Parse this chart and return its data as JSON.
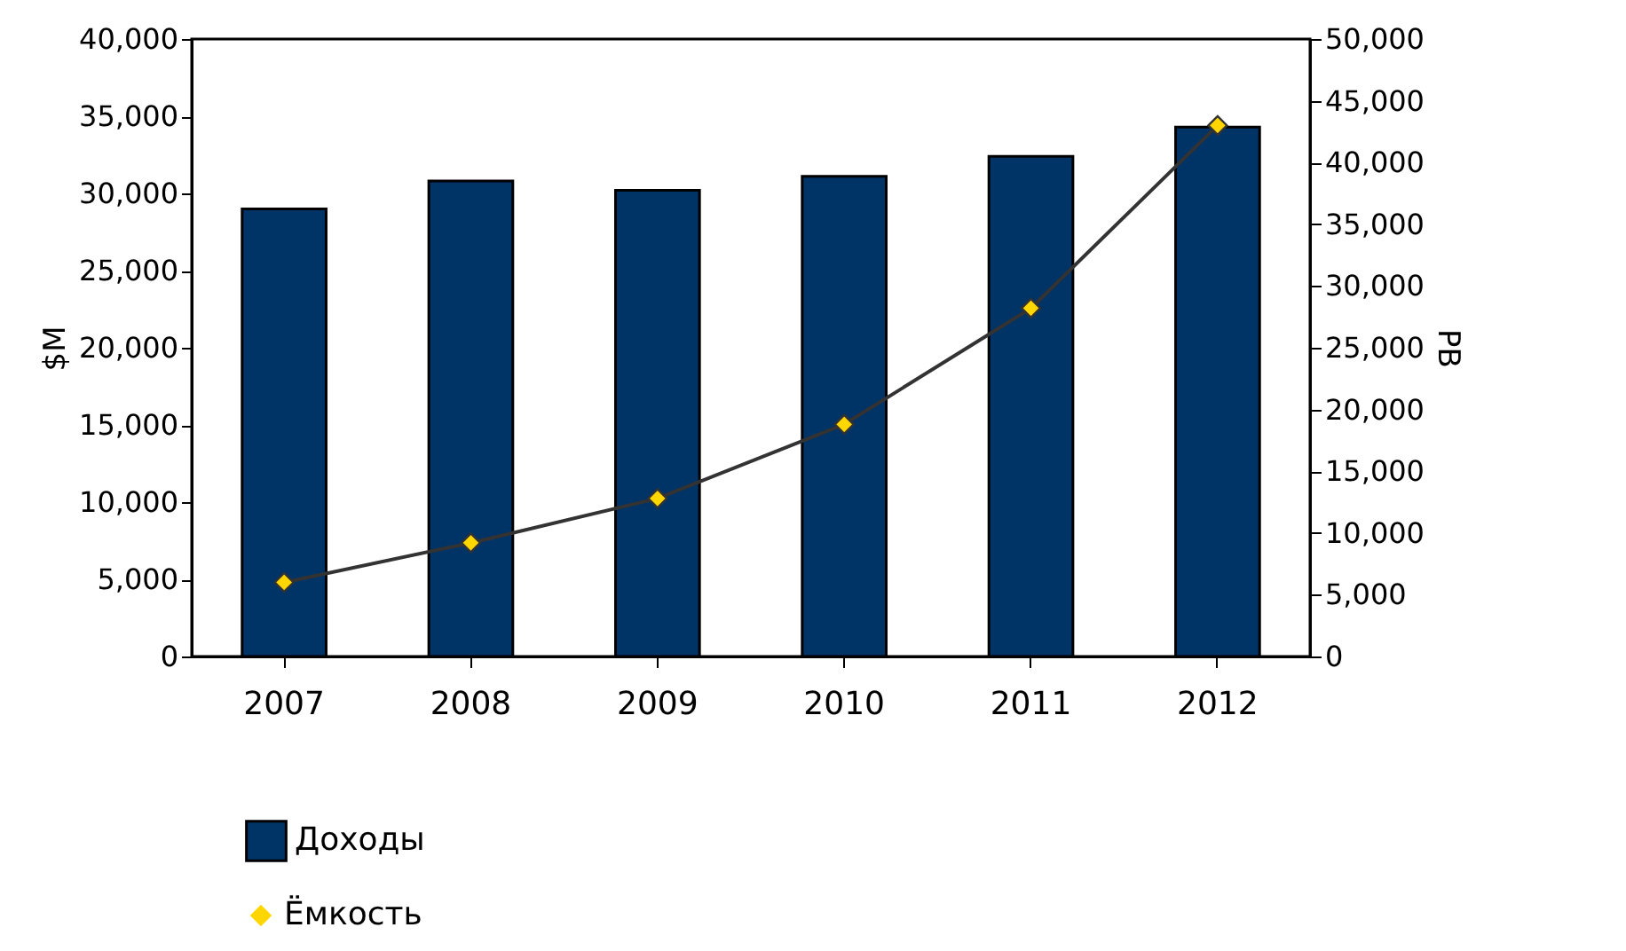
{
  "chart_data": {
    "type": "bar",
    "ylabel": "$M",
    "y2label": "PB",
    "categories": [
      "2007",
      "2008",
      "2009",
      "2010",
      "2011",
      "2012"
    ],
    "series": [
      {
        "name": "Доходы",
        "color": "#003366",
        "values": [
          29000,
          30800,
          30200,
          31100,
          32400,
          34300
        ]
      },
      {
        "name": "Ёмкость",
        "type": "line",
        "axis": "y2",
        "color": "#333333",
        "marker": "diamond",
        "values": [
          6000,
          9200,
          12800,
          18800,
          28200,
          43000
        ]
      }
    ],
    "ylim": [
      0,
      40000
    ],
    "yticks": [
      {
        "value": 0,
        "label": "0"
      },
      {
        "value": 5000,
        "label": "5,000"
      },
      {
        "value": 10000,
        "label": "10,000"
      },
      {
        "value": 15000,
        "label": "15,000"
      },
      {
        "value": 20000,
        "label": "20,000"
      },
      {
        "value": 25000,
        "label": "25,000"
      },
      {
        "value": 30000,
        "label": "30,000"
      },
      {
        "value": 35000,
        "label": "35,000"
      },
      {
        "value": 40000,
        "label": "40,000"
      }
    ],
    "y2lim": [
      0,
      50000
    ],
    "y2ticks": [
      {
        "value": 0,
        "label": "0"
      },
      {
        "value": 5000,
        "label": "5,000"
      },
      {
        "value": 10000,
        "label": "10,000"
      },
      {
        "value": 15000,
        "label": "15,000"
      },
      {
        "value": 20000,
        "label": "20,000"
      },
      {
        "value": 25000,
        "label": "25,000"
      },
      {
        "value": 30000,
        "label": "30,000"
      },
      {
        "value": 35000,
        "label": "35,000"
      },
      {
        "value": 40000,
        "label": "40,000"
      },
      {
        "value": 45000,
        "label": "45,000"
      },
      {
        "value": 50000,
        "label": "50,000"
      }
    ],
    "legend": "bottom left",
    "grid": false
  }
}
